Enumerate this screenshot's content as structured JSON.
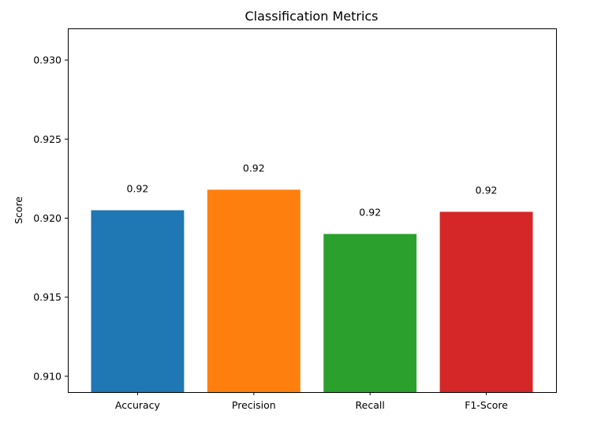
{
  "chart_data": {
    "type": "bar",
    "title": "Classification Metrics",
    "xlabel": "",
    "ylabel": "Score",
    "categories": [
      "Accuracy",
      "Precision",
      "Recall",
      "F1-Score"
    ],
    "values": [
      0.9205,
      0.9218,
      0.919,
      0.9204
    ],
    "data_labels": [
      "0.92",
      "0.92",
      "0.92",
      "0.92"
    ],
    "colors": [
      "#1f77b4",
      "#ff7f0e",
      "#2ca02c",
      "#d62728"
    ],
    "ylim": [
      0.909,
      0.932
    ],
    "yticks": [
      0.91,
      0.915,
      0.92,
      0.925,
      0.93
    ],
    "ytick_labels": [
      "0.910",
      "0.915",
      "0.920",
      "0.925",
      "0.930"
    ],
    "grid": false,
    "legend": "none"
  }
}
